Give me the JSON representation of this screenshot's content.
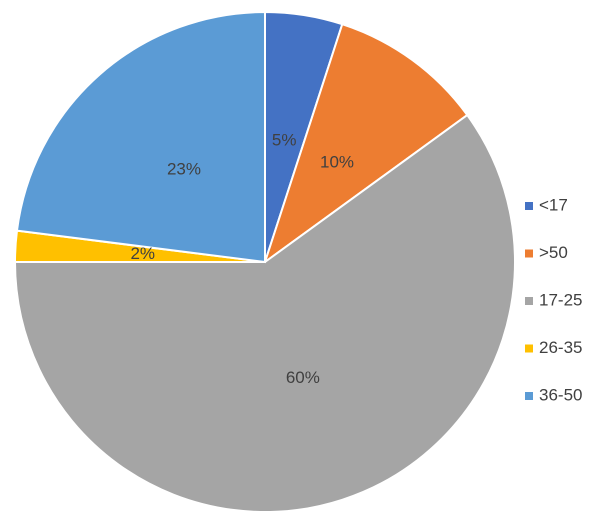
{
  "chart_data": {
    "type": "pie",
    "categories": [
      "<17",
      ">50",
      "17-25",
      "26-35",
      "36-50"
    ],
    "values": [
      5,
      10,
      60,
      2,
      23
    ],
    "value_labels": [
      "5%",
      "10%",
      "60%",
      "2%",
      "23%"
    ],
    "colors": [
      "#4472c4",
      "#ed7d31",
      "#a5a5a5",
      "#ffc000",
      "#5b9bd5"
    ],
    "legend": "right"
  }
}
